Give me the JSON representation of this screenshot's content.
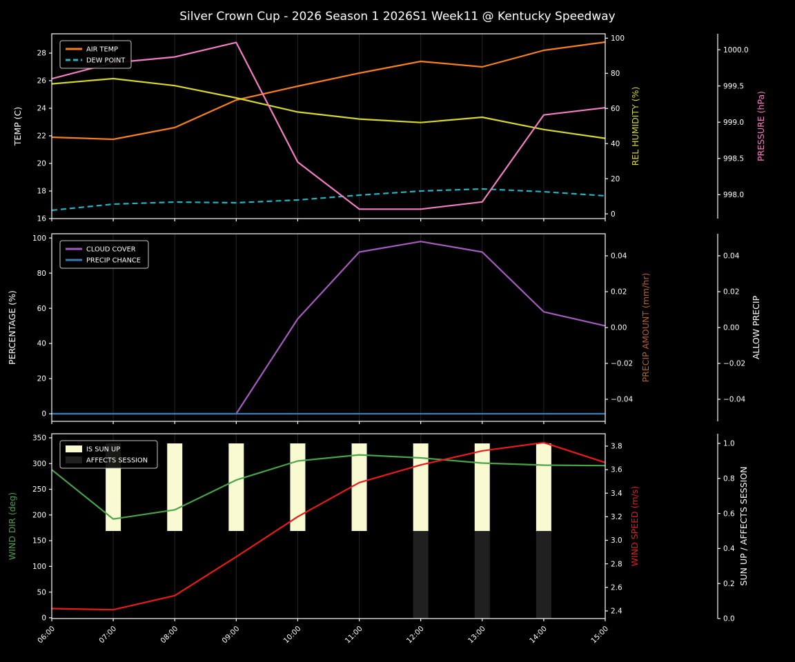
{
  "title": "Silver Crown Cup - 2026 Season 1 2026S1 Week11 @ Kentucky Speedway",
  "chart_data": {
    "type": "line",
    "x_categories": [
      "06:00",
      "07:00",
      "08:00",
      "09:00",
      "10:00",
      "11:00",
      "12:00",
      "13:00",
      "14:00",
      "15:00"
    ],
    "panels": [
      {
        "id": "temperature",
        "show_x_labels": false,
        "axes": {
          "left": {
            "label": "TEMP (C)",
            "label_color": "#ffffff",
            "min": 16.0,
            "max": 29.4,
            "ticks": [
              {
                "v": 16,
                "label": "16"
              },
              {
                "v": 18,
                "label": "18"
              },
              {
                "v": 20,
                "label": "20"
              },
              {
                "v": 22,
                "label": "22"
              },
              {
                "v": 24,
                "label": "24"
              },
              {
                "v": 26,
                "label": "26"
              },
              {
                "v": 28,
                "label": "28"
              }
            ]
          },
          "right_attached": {
            "label": "REL HUMIDITY (%)",
            "label_color": "#d8d829",
            "min": -2.7,
            "max": 102.5,
            "ticks": [
              {
                "v": 0,
                "label": "0"
              },
              {
                "v": 20,
                "label": "20"
              },
              {
                "v": 40,
                "label": "40"
              },
              {
                "v": 60,
                "label": "60"
              },
              {
                "v": 80,
                "label": "80"
              },
              {
                "v": 100,
                "label": "100"
              }
            ]
          },
          "right_detached": {
            "label": "PRESSURE (hPa)",
            "label_color": "#f47ec3",
            "min": 997.67,
            "max": 1000.22,
            "ticks": [
              {
                "v": 998.0,
                "label": "998.0"
              },
              {
                "v": 998.5,
                "label": "998.5"
              },
              {
                "v": 999.0,
                "label": "999.0"
              },
              {
                "v": 999.5,
                "label": "999.5"
              },
              {
                "v": 1000.0,
                "label": "1000.0"
              }
            ]
          }
        },
        "series": [
          {
            "name": "AIR TEMP",
            "axis": "left",
            "color": "#f7801e",
            "dashed": false,
            "in_legend": true,
            "values": [
              21.9,
              21.75,
              22.6,
              24.6,
              25.6,
              26.55,
              27.4,
              27.0,
              28.2,
              28.8
            ]
          },
          {
            "name": "DEW POINT",
            "axis": "left",
            "color": "#22b5c4",
            "dashed": true,
            "in_legend": true,
            "values": [
              16.6,
              17.05,
              17.2,
              17.15,
              17.35,
              17.7,
              18.0,
              18.15,
              17.95,
              17.65
            ]
          },
          {
            "name": "REL HUMIDITY",
            "axis": "right_attached",
            "color": "#d8d829",
            "dashed": false,
            "in_legend": false,
            "values": [
              74,
              77,
              73,
              66,
              58,
              54,
              52,
              55,
              48,
              43
            ]
          },
          {
            "name": "PRESSURE",
            "axis": "right_detached",
            "color": "#f47ec3",
            "dashed": false,
            "in_legend": false,
            "values": [
              999.6,
              999.82,
              999.9,
              1000.1,
              998.45,
              997.8,
              997.8,
              997.9,
              999.1,
              999.2
            ]
          }
        ]
      },
      {
        "id": "precipitation",
        "show_x_labels": false,
        "axes": {
          "left": {
            "label": "PERCENTAGE (%)",
            "label_color": "#ffffff",
            "min": -4.3,
            "max": 102.4,
            "ticks": [
              {
                "v": 0,
                "label": "0"
              },
              {
                "v": 20,
                "label": "20"
              },
              {
                "v": 40,
                "label": "40"
              },
              {
                "v": 60,
                "label": "60"
              },
              {
                "v": 80,
                "label": "80"
              },
              {
                "v": 100,
                "label": "100"
              }
            ]
          },
          "right_attached": {
            "label": "PRECIP AMOUNT (mm/hr)",
            "label_color": "#b4622d",
            "min": -0.0523,
            "max": 0.0523,
            "ticks": [
              {
                "v": 0.04,
                "label": "0.04"
              },
              {
                "v": 0.02,
                "label": "0.02"
              },
              {
                "v": 0.0,
                "label": "0.00"
              },
              {
                "v": -0.02,
                "label": "−0.02"
              },
              {
                "v": -0.04,
                "label": "−0.04"
              }
            ]
          },
          "right_detached": {
            "label": "ALLOW PRECIP",
            "label_color": "#ffffff",
            "min": -0.0523,
            "max": 0.0523,
            "ticks": [
              {
                "v": 0.04,
                "label": "0.04"
              },
              {
                "v": 0.02,
                "label": "0.02"
              },
              {
                "v": 0.0,
                "label": "0.00"
              },
              {
                "v": -0.02,
                "label": "−0.02"
              },
              {
                "v": -0.04,
                "label": "−0.04"
              }
            ]
          }
        },
        "series": [
          {
            "name": "CLOUD COVER",
            "axis": "left",
            "color": "#a55bc0",
            "dashed": false,
            "in_legend": true,
            "values": [
              0,
              0,
              0,
              0,
              54,
              92,
              98,
              92,
              58,
              50
            ]
          },
          {
            "name": "PRECIP CHANCE",
            "axis": "left",
            "color": "#377eb8",
            "dashed": false,
            "in_legend": true,
            "values": [
              0,
              0,
              0,
              0,
              0,
              0,
              0,
              0,
              0,
              0
            ]
          }
        ]
      },
      {
        "id": "wind",
        "show_x_labels": true,
        "axes": {
          "left": {
            "label": "WIND DIR (deg)",
            "label_color": "#47a447",
            "min": -1.5,
            "max": 358.0,
            "ticks": [
              {
                "v": 0,
                "label": "0"
              },
              {
                "v": 50,
                "label": "50"
              },
              {
                "v": 100,
                "label": "100"
              },
              {
                "v": 150,
                "label": "150"
              },
              {
                "v": 200,
                "label": "200"
              },
              {
                "v": 250,
                "label": "250"
              },
              {
                "v": 300,
                "label": "300"
              },
              {
                "v": 350,
                "label": "350"
              }
            ]
          },
          "right_attached": {
            "label": "WIND SPEED (m/s)",
            "label_color": "#ea1a1a",
            "min": 2.335,
            "max": 3.905,
            "ticks": [
              {
                "v": 2.4,
                "label": "2.4"
              },
              {
                "v": 2.6,
                "label": "2.6"
              },
              {
                "v": 2.8,
                "label": "2.8"
              },
              {
                "v": 3.0,
                "label": "3.0"
              },
              {
                "v": 3.2,
                "label": "3.2"
              },
              {
                "v": 3.4,
                "label": "3.4"
              },
              {
                "v": 3.6,
                "label": "3.6"
              },
              {
                "v": 3.8,
                "label": "3.8"
              }
            ]
          },
          "right_detached": {
            "label": "SUN UP / AFFECTS SESSION",
            "label_color": "#ffffff",
            "min": 0.0,
            "max": 1.055,
            "ticks": [
              {
                "v": 0.0,
                "label": "0.0"
              },
              {
                "v": 0.2,
                "label": "0.2"
              },
              {
                "v": 0.4,
                "label": "0.4"
              },
              {
                "v": 0.6,
                "label": "0.6"
              },
              {
                "v": 0.8,
                "label": "0.8"
              },
              {
                "v": 1.0,
                "label": "1.0"
              }
            ]
          }
        },
        "bars": [
          {
            "name": "IS SUN UP",
            "axis": "right_detached",
            "color": "#fafad2",
            "base": 0.5,
            "top": 1.0,
            "in_legend": true,
            "flags": [
              false,
              true,
              true,
              true,
              true,
              true,
              true,
              true,
              true,
              false
            ]
          },
          {
            "name": "AFFECTS SESSION",
            "axis": "right_detached",
            "color": "#202020",
            "base": 0.0,
            "top": 0.5,
            "in_legend": true,
            "flags": [
              false,
              false,
              false,
              false,
              false,
              false,
              true,
              true,
              true,
              false
            ]
          }
        ],
        "series": [
          {
            "name": "WIND DIR",
            "axis": "left",
            "color": "#47a447",
            "dashed": false,
            "in_legend": false,
            "values": [
              288,
              192,
              210,
              268,
              305,
              317,
              311,
              301,
              297,
              296
            ]
          },
          {
            "name": "WIND SPEED",
            "axis": "right_attached",
            "color": "#ea1a1a",
            "dashed": false,
            "in_legend": false,
            "values": [
              2.42,
              2.41,
              2.53,
              2.86,
              3.2,
              3.49,
              3.64,
              3.76,
              3.83,
              3.66
            ]
          }
        ]
      }
    ]
  },
  "style_colors": {
    "background": "#000000",
    "spine": "#ffffff",
    "gridline": "#262626",
    "tick_label": "#ffffff",
    "legend_border": "#cccccc"
  }
}
